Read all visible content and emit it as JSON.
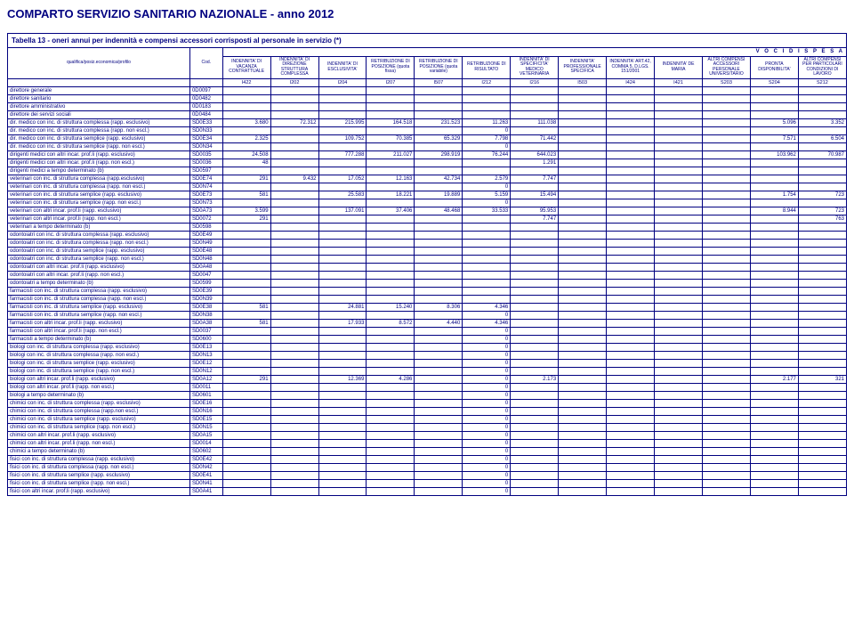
{
  "title": "COMPARTO SERVIZIO SANITARIO NAZIONALE - anno 2012",
  "subtitle": "Tabella 13 - oneri annui per indennità e compensi accessori corrisposti al personale in servizio (*)",
  "voci_label": "V O C I   D I   S P E S A",
  "header_labels": {
    "qualifica": "qualifica/posiz.economica/profilo",
    "cod": "Cod."
  },
  "columns": [
    {
      "h1": "INDENNITA' DI VACANZA CONTRATTUALE",
      "h2": "I422"
    },
    {
      "h1": "INDENNITA' DI DIREZIONE STRUTTURA COMPLESSA",
      "h2": "I202"
    },
    {
      "h1": "INDENNITA' DI ESCLUSIVITA'",
      "h2": "I204"
    },
    {
      "h1": "RETRIBUZIONE DI POSIZIONE (quota fissa)",
      "h2": "I207"
    },
    {
      "h1": "RETRIBUZIONE DI POSIZIONE (quota variabile)",
      "h2": "I507"
    },
    {
      "h1": "RETRIBUZIONE DI RISULTATO",
      "h2": "I212"
    },
    {
      "h1": "INDENNITA' DI SPECIFICITA' MEDICO VETERINARIA",
      "h2": "I216"
    },
    {
      "h1": "INDENNITA' PROFESSIONALE SPECIFICA",
      "h2": "I503"
    },
    {
      "h1": "INDENNITA' ART.42, COMMA 5, D.LGS. 151/2001",
      "h2": "I424"
    },
    {
      "h1": "INDENNITA' DE MARIA",
      "h2": "I421"
    },
    {
      "h1": "ALTRI COMPENSI ACCESSORI PERSONALE UNIVERSITARIO",
      "h2": "S203"
    },
    {
      "h1": "PRONTA DISPONIBILITA'",
      "h2": "S204"
    },
    {
      "h1": "ALTRI COMPENSI PER PARTICOLARI CONDIZIONI DI LAVORO",
      "h2": "S212"
    }
  ],
  "rows": [
    {
      "label": "direttore generale",
      "cod": "0D0097",
      "v": [
        "",
        "",
        "",
        "",
        "",
        "",
        "",
        "",
        "",
        "",
        "",
        "",
        ""
      ]
    },
    {
      "label": "direttore sanitario",
      "cod": "0D0482",
      "v": [
        "",
        "",
        "",
        "",
        "",
        "",
        "",
        "",
        "",
        "",
        "",
        "",
        ""
      ]
    },
    {
      "label": "direttore amministrativo",
      "cod": "0D0183",
      "v": [
        "",
        "",
        "",
        "",
        "",
        "",
        "",
        "",
        "",
        "",
        "",
        "",
        ""
      ]
    },
    {
      "label": "direttore dei servizi sociali",
      "cod": "0D0484",
      "v": [
        "",
        "",
        "",
        "",
        "",
        "",
        "",
        "",
        "",
        "",
        "",
        "",
        ""
      ]
    },
    {
      "label": "dir. medico con inc. di struttura complessa (rapp. esclusivo)",
      "cod": "SD0E33",
      "v": [
        "3.680",
        "72.312",
        "215.995",
        "164.518",
        "231.523",
        "11.263",
        "111.038",
        "",
        "",
        "",
        "",
        "5.096",
        "3.352"
      ]
    },
    {
      "label": "dir. medico con inc. di struttura complessa (rapp. non escl.)",
      "cod": "SD0N33",
      "v": [
        "",
        "",
        "",
        "",
        "",
        "0",
        "",
        "",
        "",
        "",
        "",
        "",
        ""
      ]
    },
    {
      "label": "dir. medico con inc. di struttura semplice (rapp. esclusivo)",
      "cod": "SD0E34",
      "v": [
        "2.325",
        "",
        "109.752",
        "70.385",
        "65.329",
        "7.798",
        "71.442",
        "",
        "",
        "",
        "",
        "7.571",
        "6.504"
      ]
    },
    {
      "label": "dir. medico con inc. di struttura semplice (rapp. non escl.)",
      "cod": "SD0N34",
      "v": [
        "",
        "",
        "",
        "",
        "",
        "0",
        "",
        "",
        "",
        "",
        "",
        "",
        ""
      ]
    },
    {
      "label": "dirigenti medici con altri incar. prof.li (rapp. esclusivo)",
      "cod": "SD0035",
      "v": [
        "24.508",
        "",
        "777.288",
        "211.027",
        "298.919",
        "76.244",
        "644.023",
        "",
        "",
        "",
        "",
        "103.962",
        "70.987"
      ]
    },
    {
      "label": "dirigenti medici con altri incar. prof.li (rapp. non escl.)",
      "cod": "SD0036",
      "v": [
        "48",
        "",
        "",
        "",
        "",
        "",
        "1.291",
        "",
        "",
        "",
        "",
        "",
        ""
      ]
    },
    {
      "label": "dirigenti medici a tempo determinato (b)",
      "cod": "SD0597",
      "v": [
        "",
        "",
        "",
        "",
        "",
        "",
        "",
        "",
        "",
        "",
        "",
        "",
        ""
      ]
    },
    {
      "label": "veterinari con inc. di struttura complessa (rapp.esclusivo)",
      "cod": "SD0E74",
      "v": [
        "291",
        "9.432",
        "17.052",
        "12.163",
        "42.734",
        "2.579",
        "7.747",
        "",
        "",
        "",
        "",
        "",
        ""
      ]
    },
    {
      "label": "veterinari con inc. di struttura complessa (rapp. non escl.)",
      "cod": "SD0N74",
      "v": [
        "",
        "",
        "",
        "",
        "",
        "0",
        "",
        "",
        "",
        "",
        "",
        "",
        ""
      ]
    },
    {
      "label": "veterinari con inc. di struttura semplice (rapp. esclusivo)",
      "cod": "SD0E73",
      "v": [
        "581",
        "",
        "25.583",
        "18.221",
        "19.889",
        "5.159",
        "15.494",
        "",
        "",
        "",
        "",
        "1.754",
        "723"
      ]
    },
    {
      "label": "veterinari con inc. di struttura semplice (rapp. non escl.)",
      "cod": "SD0N73",
      "v": [
        "",
        "",
        "",
        "",
        "",
        "0",
        "",
        "",
        "",
        "",
        "",
        "",
        ""
      ]
    },
    {
      "label": "veterinari con altri incar. prof.li (rapp. esclusivo)",
      "cod": "SD0A73",
      "v": [
        "3.599",
        "",
        "137.091",
        "37.406",
        "48.468",
        "33.533",
        "95.953",
        "",
        "",
        "",
        "",
        "8.944",
        "723"
      ]
    },
    {
      "label": "veterinari con altri incar. prof.li (rapp. non escl.)",
      "cod": "SD0072",
      "v": [
        "291",
        "",
        "",
        "",
        "",
        "",
        "7.747",
        "",
        "",
        "",
        "",
        "",
        "763"
      ]
    },
    {
      "label": "veterinari a tempo determinato (b)",
      "cod": "SD0598",
      "v": [
        "",
        "",
        "",
        "",
        "",
        "",
        "",
        "",
        "",
        "",
        "",
        "",
        ""
      ]
    },
    {
      "label": "odontoiatri con inc. di struttura complessa (rapp. esclusivo)",
      "cod": "SD0E49",
      "v": [
        "",
        "",
        "",
        "",
        "",
        "",
        "",
        "",
        "",
        "",
        "",
        "",
        ""
      ]
    },
    {
      "label": "odontoiatri con inc. di struttura complessa (rapp. non escl.)",
      "cod": "SD0N49",
      "v": [
        "",
        "",
        "",
        "",
        "",
        "",
        "",
        "",
        "",
        "",
        "",
        "",
        ""
      ]
    },
    {
      "label": "odontoiatri con inc. di struttura semplice (rapp. esclusivo)",
      "cod": "SD0E48",
      "v": [
        "",
        "",
        "",
        "",
        "",
        "",
        "",
        "",
        "",
        "",
        "",
        "",
        ""
      ]
    },
    {
      "label": "odontoiatri con inc. di struttura semplice (rapp. non escl.)",
      "cod": "SD0N48",
      "v": [
        "",
        "",
        "",
        "",
        "",
        "",
        "",
        "",
        "",
        "",
        "",
        "",
        ""
      ]
    },
    {
      "label": "odontoiatri con altri incar. prof.li (rapp. esclusivo)",
      "cod": "SD0A48",
      "v": [
        "",
        "",
        "",
        "",
        "",
        "",
        "",
        "",
        "",
        "",
        "",
        "",
        ""
      ]
    },
    {
      "label": "odontoiatri con altri incar. prof.li (rapp. non escl.)",
      "cod": "SD0047",
      "v": [
        "",
        "",
        "",
        "",
        "",
        "",
        "",
        "",
        "",
        "",
        "",
        "",
        ""
      ]
    },
    {
      "label": "odontoiatri a tempo determinato (b)",
      "cod": "SD0599",
      "v": [
        "",
        "",
        "",
        "",
        "",
        "",
        "",
        "",
        "",
        "",
        "",
        "",
        ""
      ]
    },
    {
      "label": "farmacisti con inc. di struttura complessa (rapp. esclusivo)",
      "cod": "SD0E39",
      "v": [
        "",
        "",
        "",
        "",
        "",
        "",
        "",
        "",
        "",
        "",
        "",
        "",
        ""
      ]
    },
    {
      "label": "farmacisti con inc. di struttura complessa (rapp. non escl.)",
      "cod": "SD0N39",
      "v": [
        "",
        "",
        "",
        "",
        "",
        "",
        "",
        "",
        "",
        "",
        "",
        "",
        ""
      ]
    },
    {
      "label": "farmacisti con inc. di struttura semplice (rapp. esclusivo)",
      "cod": "SD0E38",
      "v": [
        "581",
        "",
        "24.881",
        "15.240",
        "8.306",
        "4.346",
        "",
        "",
        "",
        "",
        "",
        "",
        ""
      ]
    },
    {
      "label": "farmacisti con inc. di struttura semplice (rapp. non escl.)",
      "cod": "SD0N38",
      "v": [
        "",
        "",
        "",
        "",
        "",
        "0",
        "",
        "",
        "",
        "",
        "",
        "",
        ""
      ]
    },
    {
      "label": "farmacisti con altri incar. prof.li (rapp. esclusivo)",
      "cod": "SD0A38",
      "v": [
        "581",
        "",
        "17.933",
        "8.572",
        "4.440",
        "4.346",
        "",
        "",
        "",
        "",
        "",
        "",
        ""
      ]
    },
    {
      "label": "farmacisti con altri incar. prof.li (rapp. non escl.)",
      "cod": "SD0037",
      "v": [
        "",
        "",
        "",
        "",
        "",
        "0",
        "",
        "",
        "",
        "",
        "",
        "",
        ""
      ]
    },
    {
      "label": "farmacisti a tempo determinato (b)",
      "cod": "SD0600",
      "v": [
        "",
        "",
        "",
        "",
        "",
        "0",
        "",
        "",
        "",
        "",
        "",
        "",
        ""
      ]
    },
    {
      "label": "biologi con inc. di struttura complessa (rapp. esclusivo)",
      "cod": "SD0E13",
      "v": [
        "",
        "",
        "",
        "",
        "",
        "0",
        "",
        "",
        "",
        "",
        "",
        "",
        ""
      ]
    },
    {
      "label": "biologi con inc. di struttura complessa (rapp. non escl.)",
      "cod": "SD0N13",
      "v": [
        "",
        "",
        "",
        "",
        "",
        "0",
        "",
        "",
        "",
        "",
        "",
        "",
        ""
      ]
    },
    {
      "label": "biologi con inc. di struttura semplice (rapp. esclusivo)",
      "cod": "SD0E12",
      "v": [
        "",
        "",
        "",
        "",
        "",
        "0",
        "",
        "",
        "",
        "",
        "",
        "",
        ""
      ]
    },
    {
      "label": "biologi con inc. di struttura semplice (rapp. non escl.)",
      "cod": "SD0N12",
      "v": [
        "",
        "",
        "",
        "",
        "",
        "0",
        "",
        "",
        "",
        "",
        "",
        "",
        ""
      ]
    },
    {
      "label": "biologi con altri incar. prof.li (rapp. esclusivo)",
      "cod": "SD0A12",
      "v": [
        "291",
        "",
        "12.369",
        "4.286",
        "",
        "0",
        "2.173",
        "",
        "",
        "",
        "",
        "2.177",
        "321"
      ]
    },
    {
      "label": "biologi con altri incar. prof.li (rapp. non escl.)",
      "cod": "SD0011",
      "v": [
        "",
        "",
        "",
        "",
        "",
        "0",
        "",
        "",
        "",
        "",
        "",
        "",
        ""
      ]
    },
    {
      "label": "biologi a tempo determinato (b)",
      "cod": "SD0601",
      "v": [
        "",
        "",
        "",
        "",
        "",
        "0",
        "",
        "",
        "",
        "",
        "",
        "",
        ""
      ]
    },
    {
      "label": "chimici con inc. di struttura complessa (rapp. esclusivo)",
      "cod": "SD0E16",
      "v": [
        "",
        "",
        "",
        "",
        "",
        "0",
        "",
        "",
        "",
        "",
        "",
        "",
        ""
      ]
    },
    {
      "label": "chimici con inc. di struttura complessa (rapp.non escl.)",
      "cod": "SD0N16",
      "v": [
        "",
        "",
        "",
        "",
        "",
        "0",
        "",
        "",
        "",
        "",
        "",
        "",
        ""
      ]
    },
    {
      "label": "chimici con inc. di struttura semplice (rapp. esclusivo)",
      "cod": "SD0E15",
      "v": [
        "",
        "",
        "",
        "",
        "",
        "0",
        "",
        "",
        "",
        "",
        "",
        "",
        ""
      ]
    },
    {
      "label": "chimici con inc. di struttura semplice (rapp. non escl.)",
      "cod": "SD0N15",
      "v": [
        "",
        "",
        "",
        "",
        "",
        "0",
        "",
        "",
        "",
        "",
        "",
        "",
        ""
      ]
    },
    {
      "label": "chimici con altri incar. prof.li (rapp. esclusivo)",
      "cod": "SD0A15",
      "v": [
        "",
        "",
        "",
        "",
        "",
        "0",
        "",
        "",
        "",
        "",
        "",
        "",
        ""
      ]
    },
    {
      "label": "chimici con altri incar. prof.li (rapp. non escl.)",
      "cod": "SD0014",
      "v": [
        "",
        "",
        "",
        "",
        "",
        "0",
        "",
        "",
        "",
        "",
        "",
        "",
        ""
      ]
    },
    {
      "label": "chimici a tempo determinato (b)",
      "cod": "SD0602",
      "v": [
        "",
        "",
        "",
        "",
        "",
        "0",
        "",
        "",
        "",
        "",
        "",
        "",
        ""
      ]
    },
    {
      "label": "fisici con inc. di struttura complessa (rapp. esclusivo)",
      "cod": "SD0E42",
      "v": [
        "",
        "",
        "",
        "",
        "",
        "0",
        "",
        "",
        "",
        "",
        "",
        "",
        ""
      ]
    },
    {
      "label": "fisici con inc. di struttura complessa (rapp. non escl.)",
      "cod": "SD0N42",
      "v": [
        "",
        "",
        "",
        "",
        "",
        "0",
        "",
        "",
        "",
        "",
        "",
        "",
        ""
      ]
    },
    {
      "label": "fisici con inc. di struttura semplice (rapp. esclusivo)",
      "cod": "SD0E41",
      "v": [
        "",
        "",
        "",
        "",
        "",
        "0",
        "",
        "",
        "",
        "",
        "",
        "",
        ""
      ]
    },
    {
      "label": "fisici con inc. di struttura semplice (rapp. non escl.)",
      "cod": "SD0N41",
      "v": [
        "",
        "",
        "",
        "",
        "",
        "0",
        "",
        "",
        "",
        "",
        "",
        "",
        ""
      ]
    },
    {
      "label": "fisici con altri incar. prof.li (rapp. esclusivo)",
      "cod": "SD0A41",
      "v": [
        "",
        "",
        "",
        "",
        "",
        "0",
        "",
        "",
        "",
        "",
        "",
        "",
        ""
      ]
    }
  ]
}
